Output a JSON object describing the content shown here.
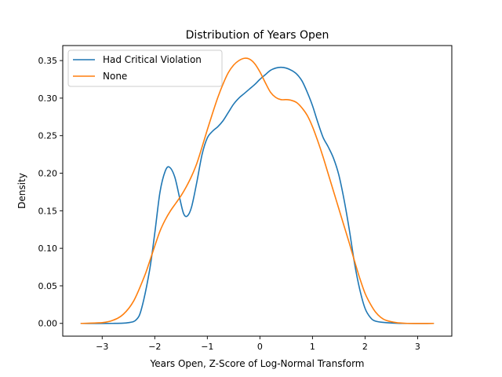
{
  "chart_data": {
    "type": "line",
    "title": "Distribution of Years Open",
    "xlabel": "Years Open, Z-Score of Log-Normal Transform",
    "ylabel": "Density",
    "xlim": [
      -3.75,
      3.65
    ],
    "ylim": [
      -0.017,
      0.37
    ],
    "xticks": [
      -3,
      -2,
      -1,
      0,
      1,
      2,
      3
    ],
    "xtick_labels": [
      "−3",
      "−2",
      "−1",
      "0",
      "1",
      "2",
      "3"
    ],
    "yticks": [
      0.0,
      0.05,
      0.1,
      0.15,
      0.2,
      0.25,
      0.3,
      0.35
    ],
    "ytick_labels": [
      "0.00",
      "0.05",
      "0.10",
      "0.15",
      "0.20",
      "0.25",
      "0.30",
      "0.35"
    ],
    "grid": false,
    "legend_position": "top-left",
    "series": [
      {
        "name": "Had Critical Violation",
        "color": "#1f77b4",
        "points": [
          [
            -3.4,
            0.0
          ],
          [
            -2.8,
            0.0
          ],
          [
            -2.5,
            0.001
          ],
          [
            -2.35,
            0.005
          ],
          [
            -2.25,
            0.02
          ],
          [
            -2.1,
            0.07
          ],
          [
            -2.0,
            0.12
          ],
          [
            -1.9,
            0.175
          ],
          [
            -1.8,
            0.203
          ],
          [
            -1.72,
            0.208
          ],
          [
            -1.62,
            0.195
          ],
          [
            -1.52,
            0.165
          ],
          [
            -1.45,
            0.146
          ],
          [
            -1.38,
            0.143
          ],
          [
            -1.3,
            0.155
          ],
          [
            -1.2,
            0.188
          ],
          [
            -1.1,
            0.225
          ],
          [
            -1.0,
            0.247
          ],
          [
            -0.9,
            0.256
          ],
          [
            -0.8,
            0.262
          ],
          [
            -0.7,
            0.27
          ],
          [
            -0.6,
            0.281
          ],
          [
            -0.5,
            0.292
          ],
          [
            -0.4,
            0.3
          ],
          [
            -0.3,
            0.306
          ],
          [
            -0.2,
            0.312
          ],
          [
            -0.1,
            0.318
          ],
          [
            0.0,
            0.325
          ],
          [
            0.1,
            0.331
          ],
          [
            0.2,
            0.337
          ],
          [
            0.3,
            0.34
          ],
          [
            0.4,
            0.341
          ],
          [
            0.5,
            0.34
          ],
          [
            0.6,
            0.337
          ],
          [
            0.7,
            0.332
          ],
          [
            0.8,
            0.323
          ],
          [
            0.9,
            0.308
          ],
          [
            1.0,
            0.29
          ],
          [
            1.1,
            0.268
          ],
          [
            1.2,
            0.248
          ],
          [
            1.3,
            0.235
          ],
          [
            1.4,
            0.22
          ],
          [
            1.5,
            0.198
          ],
          [
            1.6,
            0.165
          ],
          [
            1.7,
            0.125
          ],
          [
            1.8,
            0.08
          ],
          [
            1.9,
            0.045
          ],
          [
            2.0,
            0.02
          ],
          [
            2.1,
            0.008
          ],
          [
            2.2,
            0.003
          ],
          [
            2.4,
            0.001
          ],
          [
            2.7,
            0.0
          ],
          [
            3.3,
            0.0
          ]
        ]
      },
      {
        "name": "None",
        "color": "#ff7f0e",
        "points": [
          [
            -3.4,
            0.0
          ],
          [
            -3.0,
            0.001
          ],
          [
            -2.8,
            0.004
          ],
          [
            -2.6,
            0.012
          ],
          [
            -2.4,
            0.03
          ],
          [
            -2.2,
            0.062
          ],
          [
            -2.1,
            0.082
          ],
          [
            -2.0,
            0.103
          ],
          [
            -1.9,
            0.123
          ],
          [
            -1.8,
            0.138
          ],
          [
            -1.7,
            0.15
          ],
          [
            -1.6,
            0.16
          ],
          [
            -1.5,
            0.17
          ],
          [
            -1.4,
            0.182
          ],
          [
            -1.3,
            0.196
          ],
          [
            -1.2,
            0.213
          ],
          [
            -1.1,
            0.235
          ],
          [
            -1.0,
            0.258
          ],
          [
            -0.9,
            0.28
          ],
          [
            -0.8,
            0.301
          ],
          [
            -0.7,
            0.319
          ],
          [
            -0.6,
            0.334
          ],
          [
            -0.5,
            0.344
          ],
          [
            -0.4,
            0.35
          ],
          [
            -0.3,
            0.353
          ],
          [
            -0.2,
            0.352
          ],
          [
            -0.1,
            0.346
          ],
          [
            0.0,
            0.335
          ],
          [
            0.1,
            0.321
          ],
          [
            0.2,
            0.308
          ],
          [
            0.3,
            0.301
          ],
          [
            0.4,
            0.298
          ],
          [
            0.5,
            0.298
          ],
          [
            0.6,
            0.297
          ],
          [
            0.7,
            0.294
          ],
          [
            0.8,
            0.287
          ],
          [
            0.9,
            0.277
          ],
          [
            1.0,
            0.262
          ],
          [
            1.1,
            0.243
          ],
          [
            1.2,
            0.222
          ],
          [
            1.3,
            0.199
          ],
          [
            1.4,
            0.176
          ],
          [
            1.5,
            0.153
          ],
          [
            1.6,
            0.13
          ],
          [
            1.7,
            0.107
          ],
          [
            1.8,
            0.083
          ],
          [
            1.9,
            0.06
          ],
          [
            2.0,
            0.04
          ],
          [
            2.1,
            0.026
          ],
          [
            2.2,
            0.015
          ],
          [
            2.3,
            0.008
          ],
          [
            2.4,
            0.004
          ],
          [
            2.6,
            0.001
          ],
          [
            2.8,
            0.0
          ],
          [
            3.3,
            0.0
          ]
        ]
      }
    ]
  }
}
